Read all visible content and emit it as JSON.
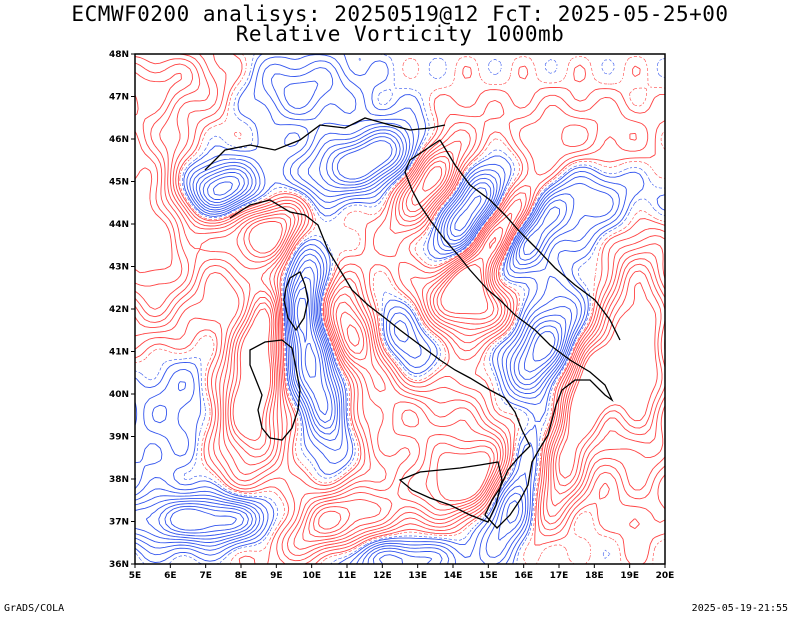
{
  "title_line1": "ECMWF0200 analisys: 20250519@12 FcT: 2025-05-25+00",
  "title_line2": "Relative Vorticity 1000mb",
  "footer_left": "GrADS/COLA",
  "footer_right": "2025-05-19-21:55",
  "colors": {
    "positive": "#ff4444",
    "negative": "#3355ee",
    "frame": "#000000",
    "coast": "#000000"
  },
  "map": {
    "lon_labels": [
      "5E",
      "6E",
      "7E",
      "8E",
      "9E",
      "10E",
      "11E",
      "12E",
      "13E",
      "14E",
      "15E",
      "16E",
      "17E",
      "18E",
      "19E",
      "20E"
    ],
    "lat_labels": [
      "48N",
      "47N",
      "46N",
      "45N",
      "44N",
      "43N",
      "42N",
      "41N",
      "40N",
      "39N",
      "38N",
      "37N",
      "36N"
    ]
  }
}
